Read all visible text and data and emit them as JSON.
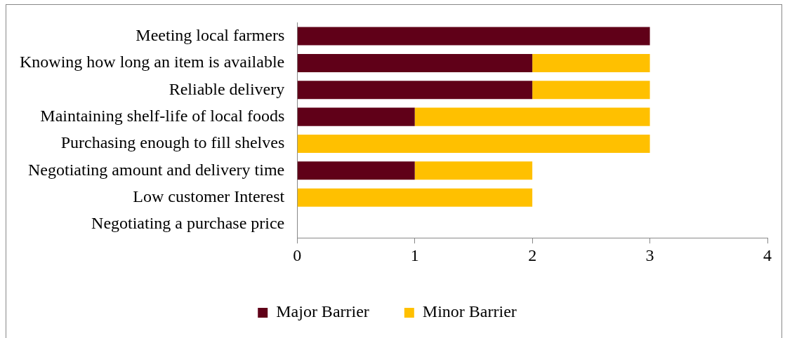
{
  "chart_data": {
    "type": "bar",
    "orientation": "horizontal",
    "stacked": true,
    "categories": [
      "Meeting local farmers",
      "Knowing how long an item is available",
      "Reliable delivery",
      "Maintaining shelf-life of local foods",
      "Purchasing enough to fill shelves",
      "Negotiating amount and delivery time",
      "Low customer Interest",
      "Negotiating a purchase price"
    ],
    "series": [
      {
        "name": "Major Barrier",
        "color": "#600018",
        "values": [
          3,
          2,
          2,
          1,
          0,
          1,
          0,
          0
        ]
      },
      {
        "name": "Minor Barrier",
        "color": "#ffc000",
        "values": [
          0,
          1,
          1,
          2,
          3,
          1,
          2,
          0
        ]
      }
    ],
    "xlim": [
      0,
      4
    ],
    "xticks": [
      0,
      1,
      2,
      3,
      4
    ],
    "grid": false,
    "legend": "bottom"
  }
}
